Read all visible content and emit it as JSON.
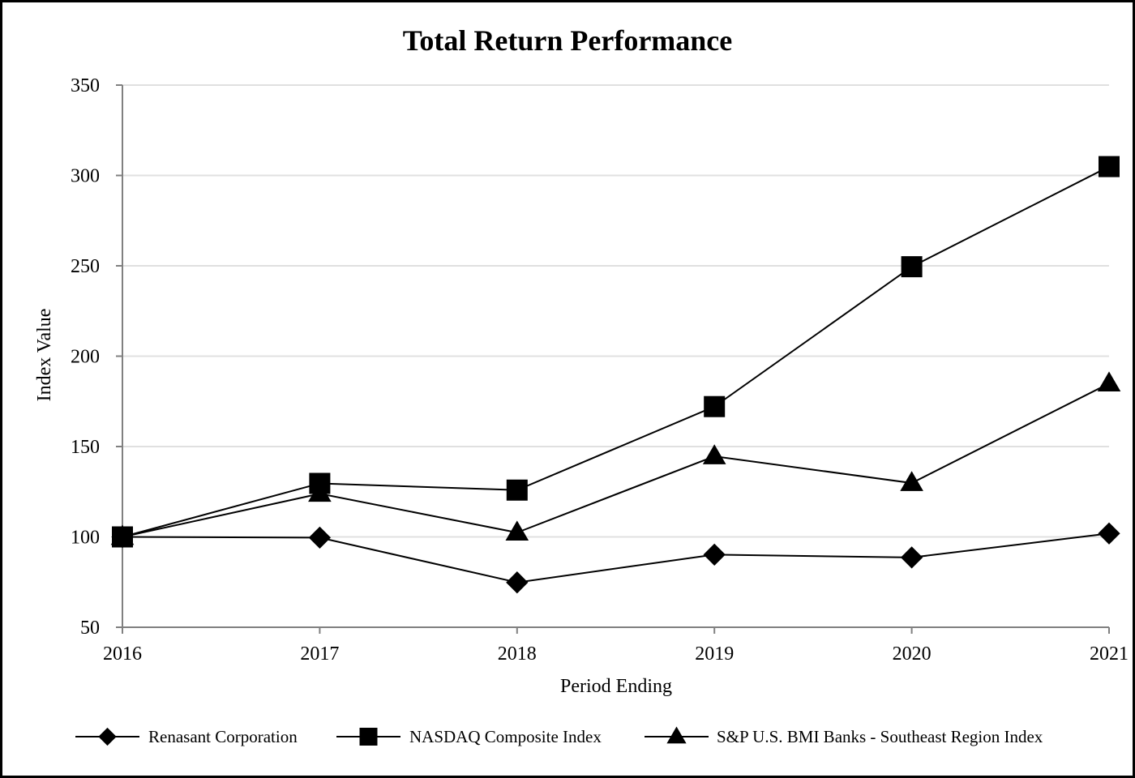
{
  "chart_data": {
    "type": "line",
    "title": "Total Return Performance",
    "xlabel": "Period Ending",
    "ylabel": "Index Value",
    "x": [
      "2016",
      "2017",
      "2018",
      "2019",
      "2020",
      "2021"
    ],
    "ylim": [
      50,
      350
    ],
    "yticks": [
      50,
      100,
      150,
      200,
      250,
      300,
      350
    ],
    "grid": true,
    "legend_position": "bottom",
    "series": [
      {
        "name": "Renasant Corporation",
        "marker": "diamond",
        "values": [
          100.0,
          99.6,
          74.8,
          90.2,
          88.6,
          101.9
        ]
      },
      {
        "name": "NASDAQ Composite Index",
        "marker": "square",
        "values": [
          100.0,
          129.6,
          125.9,
          172.1,
          249.5,
          304.9
        ]
      },
      {
        "name": "S&P U.S. BMI Banks - Southeast Region Index",
        "marker": "triangle",
        "values": [
          100.0,
          123.9,
          102.4,
          144.6,
          129.8,
          184.9
        ]
      }
    ],
    "colors": {
      "line": "#000000",
      "grid": "#e0e0e0",
      "axis": "#808080",
      "border": "#000000"
    }
  }
}
